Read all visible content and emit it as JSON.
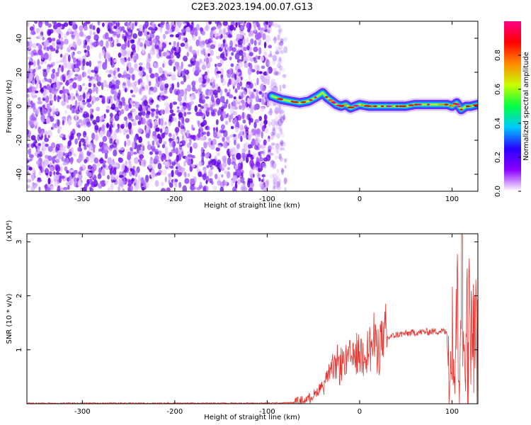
{
  "title": "C2E3.2023.194.00.07.G13",
  "chart_data": [
    {
      "type": "heatmap",
      "name": "spectrogram",
      "xlabel": "Height of straight line (km)",
      "ylabel": "Frequency (Hz)",
      "xlim": [
        -360,
        128
      ],
      "ylim": [
        -50,
        50
      ],
      "xticks": [
        -300,
        -200,
        -100,
        0,
        100
      ],
      "yticks": [
        -40,
        -20,
        0,
        20,
        40
      ],
      "noise_region_x": [
        -360,
        -80
      ],
      "signal_trace": {
        "x": [
          -95,
          -85,
          -75,
          -65,
          -55,
          -45,
          -40,
          -35,
          -30,
          -25,
          -20,
          -15,
          -10,
          -5,
          0,
          10,
          20,
          30,
          40,
          50,
          60,
          70,
          80,
          90,
          95,
          100,
          105,
          110,
          115,
          120,
          128
        ],
        "y": [
          6,
          4,
          3,
          2,
          3,
          6,
          8,
          5,
          3,
          1,
          0,
          1,
          -1,
          0,
          1,
          0,
          0,
          0,
          0,
          0,
          1,
          1,
          1,
          1,
          1,
          0,
          2,
          -2,
          0,
          0,
          1
        ]
      },
      "colorbar": {
        "label": "Normalized spectral amplitude",
        "range": [
          0,
          1
        ],
        "ticks": [
          "0.0",
          "0.2",
          "0.4",
          "0.6",
          "0.8"
        ],
        "colors": [
          "#ffffff",
          "#8a00ff",
          "#2a00ff",
          "#00c8ff",
          "#00ff44",
          "#c8ff00",
          "#ff8a00",
          "#ff0000",
          "#ff0088"
        ]
      }
    },
    {
      "type": "line",
      "name": "snr",
      "xlabel": "Height of straight line (km)",
      "ylabel": "SNR (10 * v/v)",
      "scale_label": "(x10⁴)",
      "xlim": [
        -360,
        128
      ],
      "ylim": [
        0,
        3.15
      ],
      "xticks": [
        -300,
        -200,
        -100,
        0,
        100
      ],
      "yticks": [
        1,
        2,
        3
      ],
      "color": "#e8342e",
      "x": [
        -360,
        -300,
        -200,
        -100,
        -70,
        -60,
        -50,
        -40,
        -35,
        -30,
        -25,
        -20,
        -15,
        -10,
        -5,
        0,
        10,
        20,
        30,
        40,
        50,
        60,
        70,
        80,
        90,
        95,
        98,
        100,
        103,
        105,
        108,
        110,
        113,
        116,
        120,
        128
      ],
      "y": [
        0.01,
        0.01,
        0.01,
        0.01,
        0.02,
        0.06,
        0.15,
        0.35,
        0.5,
        0.6,
        0.7,
        0.75,
        0.8,
        0.85,
        0.9,
        0.95,
        1.05,
        1.15,
        1.22,
        1.28,
        1.3,
        1.32,
        1.33,
        1.34,
        1.35,
        1.3,
        0.5,
        1.8,
        0.3,
        2.3,
        0.4,
        3.1,
        0.8,
        1.5,
        1.3,
        1.2
      ]
    }
  ]
}
